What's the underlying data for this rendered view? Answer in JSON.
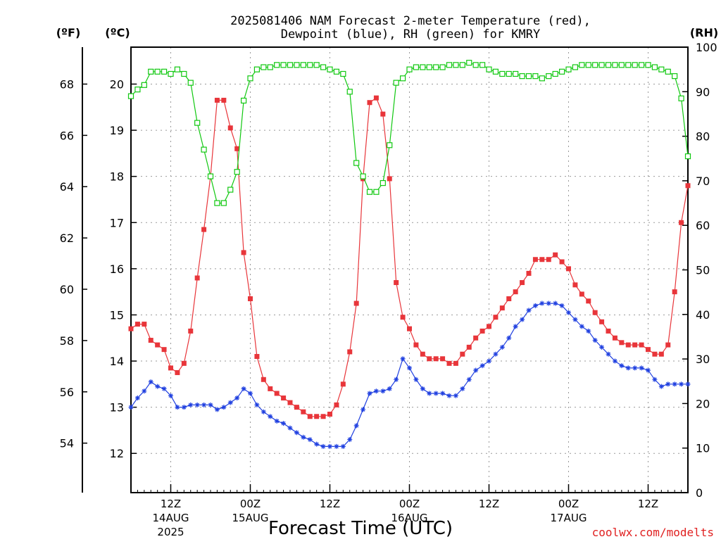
{
  "colors": {
    "temperature": "#e8353a",
    "dewpoint": "#2040e0",
    "rh": "#10c810",
    "grid": "#999999"
  },
  "title": {
    "line1": "2025081406 NAM Forecast 2-meter Temperature (red),",
    "line2": "Dewpoint (blue), RH (green) for KMRY"
  },
  "units": {
    "f": "(ºF)",
    "c": "(ºC)",
    "rh": "(RH)"
  },
  "credit": "coolwx.com/modelts",
  "chart_data": {
    "type": "line",
    "title": "2025081406 NAM Forecast 2-meter Temperature (red), Dewpoint (blue), RH (green) for KMRY",
    "xlabel": "Forecast Time (UTC)",
    "x_hours": [
      6,
      7,
      8,
      9,
      10,
      11,
      12,
      13,
      14,
      15,
      16,
      17,
      18,
      19,
      20,
      21,
      22,
      23,
      24,
      25,
      26,
      27,
      28,
      29,
      30,
      31,
      32,
      33,
      34,
      35,
      36,
      37,
      38,
      39,
      40,
      41,
      42,
      43,
      44,
      45,
      46,
      47,
      48,
      49,
      50,
      51,
      52,
      53,
      54,
      55,
      56,
      57,
      58,
      59,
      60,
      61,
      62,
      63,
      64,
      65,
      66,
      67,
      68,
      69,
      70,
      71,
      72,
      73,
      74,
      75,
      76,
      77,
      78,
      79,
      80,
      81,
      82,
      83,
      84,
      85,
      86,
      87,
      88,
      89,
      90
    ],
    "x_ticks": [
      {
        "hour": 12,
        "label": "12Z",
        "sub1": "14AUG",
        "sub2": "2025"
      },
      {
        "hour": 24,
        "label": "00Z",
        "sub1": "15AUG",
        "sub2": ""
      },
      {
        "hour": 36,
        "label": "12Z",
        "sub1": "",
        "sub2": ""
      },
      {
        "hour": 48,
        "label": "00Z",
        "sub1": "16AUG",
        "sub2": ""
      },
      {
        "hour": 60,
        "label": "12Z",
        "sub1": "",
        "sub2": ""
      },
      {
        "hour": 72,
        "label": "00Z",
        "sub1": "17AUG",
        "sub2": ""
      },
      {
        "hour": 84,
        "label": "12Z",
        "sub1": "",
        "sub2": ""
      }
    ],
    "xlim": [
      6,
      90
    ],
    "ylim_c": [
      11.15,
      20.8
    ],
    "ylim_rh": [
      0,
      100
    ],
    "y_ticks_c": [
      12,
      13,
      14,
      15,
      16,
      17,
      18,
      19,
      20
    ],
    "y_ticks_f": [
      54,
      56,
      58,
      60,
      62,
      64,
      66,
      68
    ],
    "y_ticks_rh": [
      0,
      10,
      20,
      30,
      40,
      50,
      60,
      70,
      80,
      90,
      100
    ],
    "grid": true,
    "series": [
      {
        "name": "Temperature",
        "axis": "c",
        "marker": "square",
        "values": [
          14.7,
          14.8,
          14.8,
          14.45,
          14.35,
          14.25,
          13.85,
          13.75,
          13.95,
          14.65,
          15.8,
          16.85,
          18.0,
          19.65,
          19.65,
          19.05,
          18.6,
          16.35,
          15.35,
          14.1,
          13.6,
          13.4,
          13.3,
          13.2,
          13.1,
          13.0,
          12.9,
          12.8,
          12.8,
          12.8,
          12.85,
          13.05,
          13.5,
          14.2,
          15.25,
          17.95,
          19.6,
          19.7,
          19.35,
          17.95,
          15.7,
          14.95,
          14.7,
          14.35,
          14.15,
          14.05,
          14.05,
          14.05,
          13.95,
          13.95,
          14.15,
          14.3,
          14.5,
          14.65,
          14.75,
          14.95,
          15.15,
          15.35,
          15.5,
          15.7,
          15.9,
          16.2,
          16.2,
          16.2,
          16.3,
          16.15,
          16.0,
          15.65,
          15.45,
          15.3,
          15.05,
          14.85,
          14.65,
          14.5,
          14.4,
          14.35,
          14.35,
          14.35,
          14.25,
          14.15,
          14.15,
          14.35,
          15.5,
          17.0,
          17.8
        ]
      },
      {
        "name": "Dewpoint",
        "axis": "c",
        "marker": "star",
        "values": [
          13.0,
          13.2,
          13.35,
          13.55,
          13.45,
          13.4,
          13.25,
          13.0,
          13.0,
          13.05,
          13.05,
          13.05,
          13.05,
          12.95,
          13.0,
          13.1,
          13.2,
          13.4,
          13.3,
          13.05,
          12.9,
          12.8,
          12.7,
          12.65,
          12.55,
          12.45,
          12.35,
          12.3,
          12.2,
          12.15,
          12.15,
          12.15,
          12.15,
          12.3,
          12.6,
          12.95,
          13.3,
          13.35,
          13.35,
          13.4,
          13.6,
          14.05,
          13.85,
          13.6,
          13.4,
          13.3,
          13.3,
          13.3,
          13.25,
          13.25,
          13.4,
          13.6,
          13.8,
          13.9,
          14.0,
          14.15,
          14.3,
          14.5,
          14.75,
          14.9,
          15.1,
          15.2,
          15.25,
          15.25,
          15.25,
          15.2,
          15.05,
          14.9,
          14.75,
          14.65,
          14.45,
          14.3,
          14.15,
          14.0,
          13.9,
          13.85,
          13.85,
          13.85,
          13.8,
          13.6,
          13.45,
          13.5,
          13.5,
          13.5,
          13.5
        ]
      },
      {
        "name": "RH",
        "axis": "rh",
        "marker": "open-square",
        "values": [
          89,
          90.5,
          91.5,
          94.5,
          94.5,
          94.5,
          94,
          95,
          94,
          92,
          83,
          77,
          71,
          65,
          65,
          68,
          72,
          88,
          93,
          95,
          95.5,
          95.5,
          96,
          96,
          96,
          96,
          96,
          96,
          96,
          95.5,
          95,
          94.5,
          94,
          90,
          74,
          71,
          67.5,
          67.5,
          69.5,
          78,
          92,
          93,
          95,
          95.5,
          95.5,
          95.5,
          95.5,
          95.5,
          96,
          96,
          96,
          96.5,
          96,
          96,
          95,
          94.5,
          94,
          94,
          94,
          93.5,
          93.5,
          93.5,
          93,
          93.5,
          94,
          94.5,
          95,
          95.5,
          96,
          96,
          96,
          96,
          96,
          96,
          96,
          96,
          96,
          96,
          96,
          95.5,
          95,
          94.5,
          93.5,
          88.5,
          75.5
        ]
      }
    ]
  }
}
